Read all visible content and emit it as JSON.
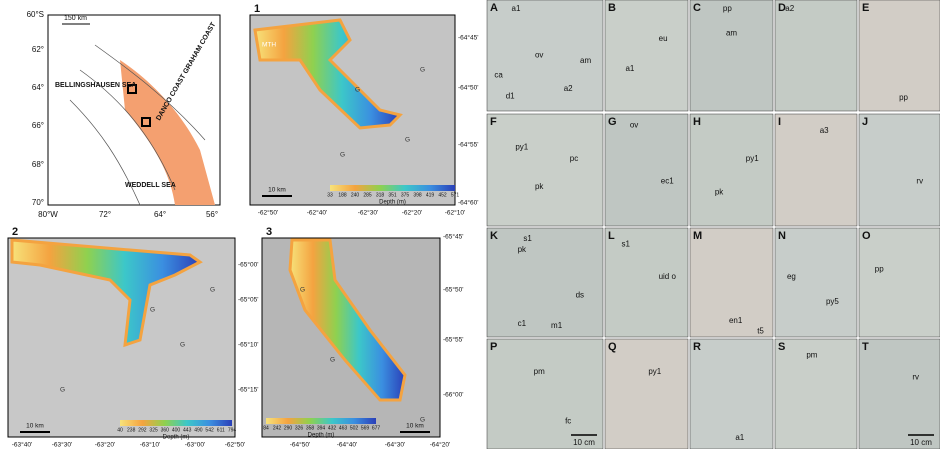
{
  "overview_map": {
    "lat_labels": [
      "60°S",
      "62°",
      "64°",
      "66°",
      "68°",
      "70°"
    ],
    "lon_labels": [
      "80°W",
      "72°",
      "64°",
      "56°"
    ],
    "scale": "150 km",
    "seas": [
      "BELLINGSHAUSEN SEA",
      "WEDDELL SEA",
      "DANCO COAST GRAHAM COAST"
    ]
  },
  "maps": [
    {
      "number": "1",
      "lat_labels": [
        "-64°45'",
        "-64°50'",
        "-64°55'",
        "-64°60'"
      ],
      "lon_labels": [
        "-62°50'",
        "-62°40'",
        "-62°30'",
        "-62°20'",
        "-62°10'"
      ],
      "scale": "10 km",
      "depth_labels": [
        33,
        188,
        240,
        285,
        318,
        351,
        375,
        398,
        419,
        452,
        571
      ],
      "depth_title": "Depth (m)",
      "place": "MTH",
      "glacier": "G"
    },
    {
      "number": "2",
      "lat_labels": [
        "-65°00'",
        "-65°05'",
        "-65°10'",
        "-65°15'"
      ],
      "lon_labels": [
        "-63°40'",
        "-63°30'",
        "-63°20'",
        "-63°10'",
        "-63°00'",
        "-62°50'"
      ],
      "scale": "10 km",
      "depth_labels": [
        40,
        238,
        292,
        325,
        360,
        400,
        443,
        490,
        542,
        611,
        794
      ],
      "depth_title": "Depth (m)",
      "glacier": "G"
    },
    {
      "number": "3",
      "lat_labels": [
        "-65°45'",
        "-65°50'",
        "-65°55'",
        "-66°00'"
      ],
      "lon_labels": [
        "-64°50'",
        "-64°40'",
        "-64°30'",
        "-64°20'"
      ],
      "scale": "10 km",
      "depth_labels": [
        84,
        242,
        290,
        326,
        358,
        394,
        432,
        463,
        502,
        569,
        677
      ],
      "depth_title": "Depth (m)",
      "glacier": "G"
    }
  ],
  "photos": [
    {
      "letter": "A",
      "tags": [
        "a1",
        "ov",
        "ca",
        "am",
        "a2",
        "d1"
      ]
    },
    {
      "letter": "B",
      "tags": [
        "eu",
        "a1"
      ]
    },
    {
      "letter": "C",
      "tags": [
        "pp",
        "am"
      ]
    },
    {
      "letter": "D",
      "tags": [
        "a2"
      ]
    },
    {
      "letter": "E",
      "tags": [
        "pp"
      ]
    },
    {
      "letter": "F",
      "tags": [
        "py1",
        "pc",
        "pk"
      ]
    },
    {
      "letter": "G",
      "tags": [
        "ov",
        "ec1"
      ]
    },
    {
      "letter": "H",
      "tags": [
        "py1",
        "pk"
      ]
    },
    {
      "letter": "I",
      "tags": [
        "a3"
      ]
    },
    {
      "letter": "J",
      "tags": [
        "rv"
      ]
    },
    {
      "letter": "K",
      "tags": [
        "s1",
        "pk",
        "ds",
        "c1",
        "m1"
      ]
    },
    {
      "letter": "L",
      "tags": [
        "s1",
        "uid o"
      ]
    },
    {
      "letter": "M",
      "tags": [
        "en1",
        "t5"
      ]
    },
    {
      "letter": "N",
      "tags": [
        "eg",
        "py5"
      ]
    },
    {
      "letter": "O",
      "tags": [
        "pp"
      ]
    },
    {
      "letter": "P",
      "tags": [
        "pm",
        "fc"
      ],
      "scale": "10 cm"
    },
    {
      "letter": "Q",
      "tags": [
        "py1"
      ]
    },
    {
      "letter": "R",
      "tags": [
        "a1"
      ]
    },
    {
      "letter": "S",
      "tags": [
        "pm"
      ]
    },
    {
      "letter": "T",
      "tags": [
        "rv"
      ],
      "scale": "10 cm"
    }
  ]
}
